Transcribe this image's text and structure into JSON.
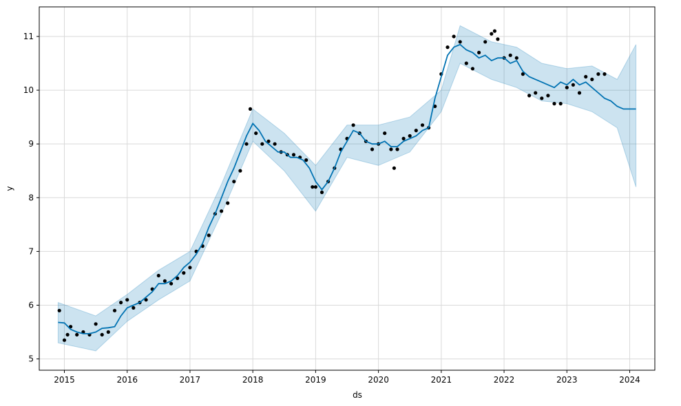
{
  "chart_data": {
    "type": "line",
    "title": "",
    "xlabel": "ds",
    "ylabel": "y",
    "x_tick_labels": [
      "2015",
      "2016",
      "2017",
      "2018",
      "2019",
      "2020",
      "2021",
      "2022",
      "2023",
      "2024"
    ],
    "y_tick_labels": [
      "5",
      "6",
      "7",
      "8",
      "9",
      "10",
      "11"
    ],
    "xlim": [
      2014.6,
      2024.4
    ],
    "ylim": [
      4.79,
      11.55
    ],
    "grid": true,
    "colors": {
      "forecast_line": "#0072B2",
      "uncertainty_band": "#0072B2",
      "observed_points": "#000000",
      "grid": "#d9d9d9"
    },
    "series": [
      {
        "kind": "scatter",
        "x": [
          2014.92,
          2015.0,
          2015.05,
          2015.1,
          2015.2,
          2015.3,
          2015.4,
          2015.5,
          2015.6,
          2015.7,
          2015.8,
          2015.9,
          2016.0,
          2016.1,
          2016.2,
          2016.3,
          2016.4,
          2016.5,
          2016.6,
          2016.7,
          2016.8,
          2016.9,
          2017.0,
          2017.1,
          2017.2,
          2017.3,
          2017.4,
          2017.5,
          2017.6,
          2017.7,
          2017.8,
          2017.9,
          2017.96,
          2018.05,
          2018.15,
          2018.25,
          2018.35,
          2018.45,
          2018.55,
          2018.65,
          2018.75,
          2018.85,
          2018.95,
          2019.0,
          2019.1,
          2019.2,
          2019.3,
          2019.4,
          2019.5,
          2019.6,
          2019.7,
          2019.8,
          2019.9,
          2020.0,
          2020.1,
          2020.2,
          2020.25,
          2020.3,
          2020.4,
          2020.5,
          2020.6,
          2020.7,
          2020.8,
          2020.9,
          2021.0,
          2021.1,
          2021.2,
          2021.3,
          2021.4,
          2021.5,
          2021.6,
          2021.7,
          2021.8,
          2021.85,
          2021.9,
          2022.0,
          2022.1,
          2022.2,
          2022.3,
          2022.4,
          2022.5,
          2022.6,
          2022.7,
          2022.8,
          2022.9,
          2023.0,
          2023.1,
          2023.2,
          2023.3,
          2023.4,
          2023.5,
          2023.6
        ],
        "y": [
          5.9,
          5.35,
          5.45,
          5.6,
          5.45,
          5.5,
          5.45,
          5.65,
          5.45,
          5.5,
          5.9,
          6.05,
          6.1,
          5.95,
          6.05,
          6.1,
          6.3,
          6.55,
          6.45,
          6.4,
          6.5,
          6.6,
          6.7,
          7.0,
          7.1,
          7.3,
          7.7,
          7.75,
          7.9,
          8.3,
          8.5,
          9.0,
          9.65,
          9.2,
          9.0,
          9.05,
          9.0,
          8.85,
          8.8,
          8.8,
          8.75,
          8.7,
          8.2,
          8.2,
          8.1,
          8.3,
          8.55,
          8.9,
          9.1,
          9.35,
          9.2,
          9.05,
          8.9,
          9.0,
          9.2,
          8.9,
          8.55,
          8.9,
          9.1,
          9.15,
          9.25,
          9.35,
          9.3,
          9.7,
          10.3,
          10.8,
          11.0,
          10.9,
          10.5,
          10.4,
          10.7,
          10.9,
          11.05,
          11.1,
          10.95,
          10.6,
          10.65,
          10.6,
          10.3,
          9.9,
          9.95,
          9.85,
          9.9,
          9.75,
          9.75,
          10.05,
          10.1,
          9.95,
          10.25,
          10.2,
          10.3,
          10.3
        ]
      },
      {
        "kind": "line",
        "name": "",
        "x": [
          2014.9,
          2015.0,
          2015.1,
          2015.2,
          2015.3,
          2015.4,
          2015.5,
          2015.6,
          2015.7,
          2015.8,
          2015.9,
          2016.0,
          2016.1,
          2016.2,
          2016.3,
          2016.4,
          2016.5,
          2016.6,
          2016.7,
          2016.8,
          2016.9,
          2017.0,
          2017.1,
          2017.2,
          2017.3,
          2017.4,
          2017.5,
          2017.6,
          2017.7,
          2017.8,
          2017.9,
          2018.0,
          2018.1,
          2018.2,
          2018.3,
          2018.4,
          2018.5,
          2018.6,
          2018.7,
          2018.8,
          2018.9,
          2019.0,
          2019.1,
          2019.2,
          2019.3,
          2019.4,
          2019.5,
          2019.6,
          2019.7,
          2019.8,
          2019.9,
          2020.0,
          2020.1,
          2020.2,
          2020.3,
          2020.4,
          2020.5,
          2020.6,
          2020.7,
          2020.8,
          2020.9,
          2021.0,
          2021.1,
          2021.2,
          2021.3,
          2021.4,
          2021.5,
          2021.6,
          2021.7,
          2021.8,
          2021.9,
          2022.0,
          2022.1,
          2022.2,
          2022.3,
          2022.4,
          2022.5,
          2022.6,
          2022.7,
          2022.8,
          2022.9,
          2023.0,
          2023.1,
          2023.2,
          2023.3,
          2023.4,
          2023.5,
          2023.6,
          2023.7,
          2023.8,
          2023.9,
          2024.0,
          2024.1
        ],
        "y": [
          5.68,
          5.67,
          5.55,
          5.5,
          5.47,
          5.47,
          5.5,
          5.57,
          5.58,
          5.6,
          5.8,
          5.95,
          6.0,
          6.05,
          6.15,
          6.25,
          6.4,
          6.4,
          6.45,
          6.55,
          6.7,
          6.8,
          6.95,
          7.15,
          7.45,
          7.7,
          8.0,
          8.3,
          8.55,
          8.85,
          9.15,
          9.38,
          9.25,
          9.05,
          8.95,
          8.85,
          8.85,
          8.75,
          8.75,
          8.7,
          8.55,
          8.3,
          8.15,
          8.3,
          8.55,
          8.85,
          9.05,
          9.25,
          9.2,
          9.05,
          9.0,
          9.0,
          9.05,
          8.95,
          8.95,
          9.05,
          9.1,
          9.15,
          9.25,
          9.3,
          9.85,
          10.25,
          10.65,
          10.8,
          10.85,
          10.75,
          10.7,
          10.6,
          10.65,
          10.55,
          10.6,
          10.6,
          10.5,
          10.55,
          10.35,
          10.25,
          10.2,
          10.15,
          10.1,
          10.05,
          10.15,
          10.1,
          10.2,
          10.1,
          10.15,
          10.05,
          9.95,
          9.85,
          9.8,
          9.7,
          9.65,
          9.65,
          9.65
        ]
      },
      {
        "kind": "band",
        "name": "",
        "x": [
          2014.9,
          2015.5,
          2016.0,
          2016.5,
          2017.0,
          2017.5,
          2018.0,
          2018.5,
          2019.0,
          2019.5,
          2020.0,
          2020.5,
          2021.0,
          2021.3,
          2021.8,
          2022.2,
          2022.6,
          2023.0,
          2023.4,
          2023.8,
          2024.1
        ],
        "upper": [
          6.05,
          5.8,
          6.2,
          6.65,
          7.0,
          8.25,
          9.65,
          9.2,
          8.6,
          9.35,
          9.35,
          9.5,
          10.0,
          11.2,
          10.9,
          10.8,
          10.5,
          10.4,
          10.45,
          10.2,
          10.85
        ],
        "lower": [
          5.3,
          5.15,
          5.7,
          6.1,
          6.45,
          7.7,
          9.05,
          8.5,
          7.75,
          8.75,
          8.6,
          8.85,
          9.6,
          10.5,
          10.2,
          10.05,
          9.8,
          9.75,
          9.6,
          9.3,
          8.2
        ]
      }
    ]
  }
}
